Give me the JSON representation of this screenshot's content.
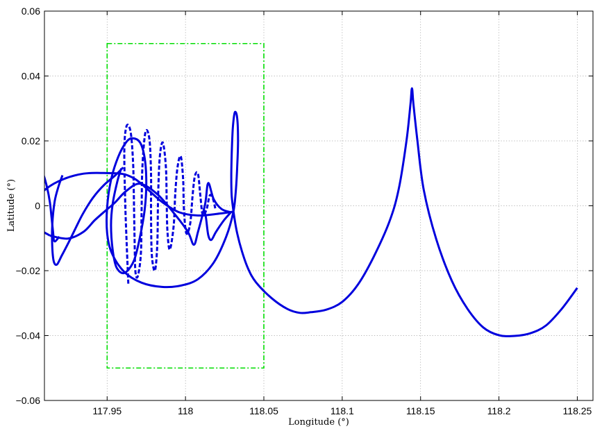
{
  "chart_data": {
    "type": "line",
    "title": "",
    "xlabel": "Longitude (°)",
    "ylabel": "Latitude (°)",
    "xlim": [
      117.91,
      118.26
    ],
    "ylim": [
      -0.06,
      0.06
    ],
    "grid": true,
    "x_ticks": [
      {
        "value": 117.95,
        "label": "117.95"
      },
      {
        "value": 118.0,
        "label": "118"
      },
      {
        "value": 118.05,
        "label": "118.05"
      },
      {
        "value": 118.1,
        "label": "118.1"
      },
      {
        "value": 118.15,
        "label": "118.15"
      },
      {
        "value": 118.2,
        "label": "118.2"
      },
      {
        "value": 118.25,
        "label": "118.25"
      }
    ],
    "y_ticks": [
      {
        "value": -0.06,
        "label": "−0.06"
      },
      {
        "value": -0.04,
        "label": "−0.04"
      },
      {
        "value": -0.02,
        "label": "−0.02"
      },
      {
        "value": 0,
        "label": "0"
      },
      {
        "value": 0.02,
        "label": "0.02"
      },
      {
        "value": 0.04,
        "label": "0.04"
      },
      {
        "value": 0.06,
        "label": "0.06"
      }
    ],
    "box": {
      "x": [
        117.95,
        118.05
      ],
      "y": [
        -0.05,
        0.05
      ],
      "color": "#00dd00",
      "style": "dash-dot"
    },
    "series": [
      {
        "style": "solid",
        "color": "#0000dd",
        "points": [
          [
            118.25,
            -0.0253
          ],
          [
            118.24,
            -0.0318
          ],
          [
            118.23,
            -0.0369
          ],
          [
            118.22,
            -0.0393
          ],
          [
            118.21,
            -0.0401
          ],
          [
            118.2,
            -0.0399
          ],
          [
            118.19,
            -0.0375
          ],
          [
            118.18,
            -0.0318
          ],
          [
            118.17,
            -0.0232
          ],
          [
            118.16,
            -0.0103
          ],
          [
            118.152,
            0.005
          ],
          [
            118.148,
            0.02
          ],
          [
            118.1455,
            0.031
          ],
          [
            118.1445,
            0.0362
          ],
          [
            118.1435,
            0.031
          ],
          [
            118.141,
            0.02
          ],
          [
            118.136,
            0.005
          ],
          [
            118.13,
            -0.005
          ],
          [
            118.12,
            -0.0158
          ],
          [
            118.11,
            -0.0243
          ],
          [
            118.1,
            -0.0296
          ],
          [
            118.09,
            -0.032
          ],
          [
            118.08,
            -0.0328
          ],
          [
            118.073,
            -0.033
          ],
          [
            118.065,
            -0.0318
          ],
          [
            118.055,
            -0.0285
          ],
          [
            118.045,
            -0.0236
          ],
          [
            118.04,
            -0.0194
          ],
          [
            118.036,
            -0.014
          ],
          [
            118.033,
            -0.0085
          ],
          [
            118.031,
            -0.003
          ],
          [
            118.0295,
            0.003
          ],
          [
            118.0292,
            0.009
          ],
          [
            118.0295,
            0.016
          ],
          [
            118.0302,
            0.024
          ],
          [
            118.0315,
            0.0288
          ],
          [
            118.033,
            0.027
          ],
          [
            118.0335,
            0.02
          ],
          [
            118.033,
            0.012
          ],
          [
            118.032,
            0.004
          ],
          [
            118.0305,
            -0.002
          ],
          [
            118.026,
            -0.0095
          ],
          [
            118.018,
            -0.0175
          ],
          [
            118.008,
            -0.0226
          ],
          [
            117.997,
            -0.0246
          ],
          [
            117.985,
            -0.025
          ],
          [
            117.972,
            -0.0237
          ],
          [
            117.961,
            -0.0204
          ],
          [
            117.953,
            -0.0146
          ],
          [
            117.95,
            -0.0084
          ],
          [
            117.95,
            -0.0005
          ],
          [
            117.9525,
            0.008
          ],
          [
            117.957,
            0.015
          ],
          [
            117.962,
            0.0195
          ],
          [
            117.966,
            0.0208
          ],
          [
            117.971,
            0.0195
          ],
          [
            117.974,
            0.0145
          ],
          [
            117.975,
            0.007
          ],
          [
            117.974,
            -0.001
          ],
          [
            117.971,
            -0.0095
          ],
          [
            117.967,
            -0.017
          ],
          [
            117.961,
            -0.0207
          ],
          [
            117.956,
            -0.019
          ],
          [
            117.9535,
            -0.0135
          ],
          [
            117.9525,
            -0.006
          ],
          [
            117.9535,
            0.0005
          ],
          [
            117.9565,
            0.0075
          ],
          [
            117.959,
            0.0115
          ]
        ]
      },
      {
        "style": "solid",
        "color": "#0000dd",
        "points": [
          [
            117.9602,
            0.0118
          ],
          [
            117.955,
            0.0093
          ],
          [
            117.948,
            0.0064
          ],
          [
            117.941,
            0.0025
          ],
          [
            117.9345,
            -0.0025
          ],
          [
            117.93,
            -0.0068
          ],
          [
            117.9255,
            -0.0112
          ],
          [
            117.921,
            -0.0154
          ],
          [
            117.918,
            -0.0181
          ],
          [
            117.916,
            -0.0172
          ],
          [
            117.915,
            -0.0128
          ],
          [
            117.915,
            -0.0058
          ],
          [
            117.9165,
            0.0013
          ],
          [
            117.919,
            0.006
          ],
          [
            117.9215,
            0.0094
          ]
        ]
      },
      {
        "style": "solid",
        "color": "#0000dd",
        "points": [
          [
            118.031,
            -0.0018
          ],
          [
            118.02,
            -0.0025
          ],
          [
            118.008,
            -0.003
          ],
          [
            117.996,
            -0.002
          ],
          [
            117.985,
            0.0012
          ],
          [
            117.976,
            0.005
          ],
          [
            117.968,
            0.0082
          ],
          [
            117.96,
            0.0098
          ],
          [
            117.948,
            0.0101
          ],
          [
            117.935,
            0.0099
          ],
          [
            117.922,
            0.0082
          ],
          [
            117.911,
            0.0052
          ],
          [
            117.904,
            0.001
          ],
          [
            117.9025,
            -0.0032
          ],
          [
            117.906,
            -0.0068
          ],
          [
            117.9135,
            -0.0092
          ]
        ]
      },
      {
        "style": "solid",
        "color": "#0000dd",
        "points": [
          [
            117.9135,
            -0.0092
          ],
          [
            117.925,
            -0.0101
          ],
          [
            117.935,
            -0.008
          ],
          [
            117.942,
            -0.0045
          ],
          [
            117.949,
            -0.0015
          ],
          [
            117.955,
            0.001
          ],
          [
            117.962,
            0.0045
          ],
          [
            117.971,
            0.0068
          ],
          [
            117.982,
            0.0036
          ],
          [
            117.993,
            -0.0025
          ],
          [
            118.0015,
            -0.008
          ],
          [
            118.0053,
            -0.012
          ],
          [
            118.008,
            -0.008
          ],
          [
            118.0125,
            0.0005
          ],
          [
            118.0145,
            0.007
          ],
          [
            118.018,
            0.002
          ],
          [
            118.023,
            -0.001
          ],
          [
            118.029,
            -0.002
          ]
        ]
      },
      {
        "style": "solid",
        "color": "#0000dd",
        "points": [
          [
            117.9,
            0.013
          ],
          [
            117.902,
            0.014
          ],
          [
            117.906,
            0.0128
          ],
          [
            117.909,
            0.0101
          ],
          [
            117.9115,
            0.006
          ],
          [
            117.9135,
            0.001
          ],
          [
            117.9145,
            -0.0035
          ],
          [
            117.9155,
            -0.008
          ],
          [
            117.916,
            -0.0105
          ],
          [
            117.917,
            -0.0109
          ],
          [
            117.9195,
            -0.0095
          ]
        ]
      },
      {
        "style": "solid",
        "color": "#0000dd",
        "points": [
          [
            118.029,
            -0.002
          ],
          [
            118.0245,
            -0.0045
          ],
          [
            118.0195,
            -0.008
          ],
          [
            118.0165,
            -0.0105
          ],
          [
            118.0145,
            -0.009
          ],
          [
            118.013,
            -0.0035
          ],
          [
            118.0115,
            -0.0008
          ]
        ]
      },
      {
        "style": "dashed",
        "color": "#0000dd",
        "points": [
          [
            117.9635,
            -0.024
          ],
          [
            117.9625,
            -0.012
          ],
          [
            117.9615,
            0.002
          ],
          [
            117.961,
            0.018
          ],
          [
            117.9625,
            0.0247
          ],
          [
            117.965,
            0.0228
          ],
          [
            117.9665,
            0.014
          ],
          [
            117.967,
            0.004
          ],
          [
            117.9675,
            -0.01
          ],
          [
            117.968,
            -0.02
          ],
          [
            117.9695,
            -0.0218
          ],
          [
            117.9715,
            -0.015
          ],
          [
            117.972,
            -0.002
          ],
          [
            117.9725,
            0.012
          ],
          [
            117.9745,
            0.0228
          ],
          [
            117.977,
            0.0205
          ],
          [
            117.978,
            0.01
          ],
          [
            117.978,
            -0.002
          ],
          [
            117.9785,
            -0.015
          ],
          [
            117.9805,
            -0.02
          ],
          [
            117.982,
            -0.012
          ],
          [
            117.9825,
            0.002
          ],
          [
            117.9835,
            0.0145
          ],
          [
            117.9855,
            0.0195
          ],
          [
            117.9875,
            0.012
          ],
          [
            117.988,
            0.001
          ],
          [
            117.9885,
            -0.008
          ],
          [
            117.99,
            -0.0135
          ],
          [
            117.9925,
            -0.006
          ],
          [
            117.9935,
            0.004
          ],
          [
            117.995,
            0.0122
          ],
          [
            117.997,
            0.0152
          ],
          [
            117.9985,
            0.008
          ],
          [
            117.999,
            -0.001
          ],
          [
            118.0005,
            -0.0085
          ],
          [
            118.003,
            -0.0055
          ],
          [
            118.0045,
            0.003
          ],
          [
            118.006,
            0.0092
          ],
          [
            118.008,
            0.0098
          ],
          [
            118.0095,
            0.003
          ],
          [
            118.011,
            -0.0028
          ],
          [
            118.0135,
            -0.001
          ],
          [
            118.0155,
            0.0032
          ],
          [
            118.0175,
            0.0022
          ],
          [
            118.019,
            -0.0008
          ]
        ]
      }
    ]
  }
}
